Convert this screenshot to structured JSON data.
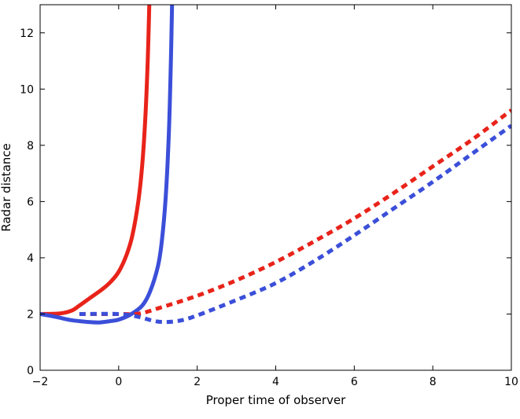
{
  "chart_data": {
    "type": "line",
    "title": "",
    "xlabel": "Proper time of observer",
    "ylabel": "Radar distance",
    "xlim": [
      -2,
      10
    ],
    "ylim": [
      0,
      13
    ],
    "x_ticks": [
      "−2",
      "0",
      "2",
      "4",
      "6",
      "8",
      "10"
    ],
    "y_ticks": [
      "0",
      "2",
      "4",
      "6",
      "8",
      "10",
      "12"
    ],
    "grid": false,
    "legend": "none",
    "series": [
      {
        "color": "#e8231a",
        "style": "solid",
        "points": [
          [
            -2.0,
            2.0
          ],
          [
            -1.5,
            2.02
          ],
          [
            -1.2,
            2.12
          ],
          [
            -1.0,
            2.3
          ],
          [
            -0.7,
            2.6
          ],
          [
            -0.4,
            2.9
          ],
          [
            -0.2,
            3.15
          ],
          [
            0.0,
            3.5
          ],
          [
            0.2,
            4.1
          ],
          [
            0.35,
            4.8
          ],
          [
            0.5,
            6.0
          ],
          [
            0.6,
            7.3
          ],
          [
            0.68,
            9.0
          ],
          [
            0.74,
            11.0
          ],
          [
            0.78,
            13.0
          ]
        ]
      },
      {
        "color": "#3b4fd9",
        "style": "solid",
        "points": [
          [
            -2.0,
            2.0
          ],
          [
            -1.6,
            1.9
          ],
          [
            -1.2,
            1.78
          ],
          [
            -0.8,
            1.72
          ],
          [
            -0.5,
            1.7
          ],
          [
            -0.2,
            1.75
          ],
          [
            0.0,
            1.8
          ],
          [
            0.3,
            1.98
          ],
          [
            0.6,
            2.3
          ],
          [
            0.8,
            2.8
          ],
          [
            1.0,
            3.7
          ],
          [
            1.1,
            4.6
          ],
          [
            1.2,
            6.2
          ],
          [
            1.28,
            8.5
          ],
          [
            1.33,
            11.0
          ],
          [
            1.36,
            13.0
          ]
        ]
      },
      {
        "color": "#e8231a",
        "style": "dotted",
        "points": [
          [
            -1.0,
            2.0
          ],
          [
            0.0,
            2.0
          ],
          [
            0.5,
            2.01
          ],
          [
            1.0,
            2.2
          ],
          [
            2.0,
            2.65
          ],
          [
            3.0,
            3.2
          ],
          [
            4.0,
            3.85
          ],
          [
            5.0,
            4.6
          ],
          [
            6.0,
            5.4
          ],
          [
            7.0,
            6.3
          ],
          [
            8.0,
            7.25
          ],
          [
            9.0,
            8.2
          ],
          [
            10.0,
            9.25
          ]
        ]
      },
      {
        "color": "#3b4fd9",
        "style": "dotted",
        "points": [
          [
            -1.0,
            2.0
          ],
          [
            0.0,
            2.0
          ],
          [
            0.5,
            1.9
          ],
          [
            1.0,
            1.73
          ],
          [
            1.5,
            1.75
          ],
          [
            2.0,
            1.95
          ],
          [
            3.0,
            2.5
          ],
          [
            4.0,
            3.1
          ],
          [
            5.0,
            3.9
          ],
          [
            6.0,
            4.8
          ],
          [
            7.0,
            5.75
          ],
          [
            8.0,
            6.7
          ],
          [
            9.0,
            7.7
          ],
          [
            10.0,
            8.7
          ]
        ]
      }
    ]
  }
}
